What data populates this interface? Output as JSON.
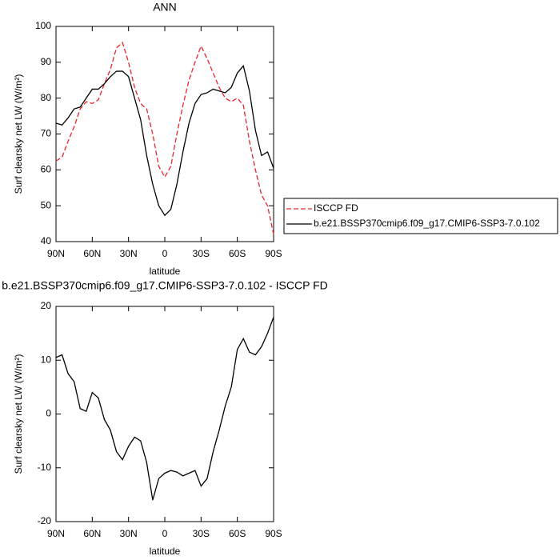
{
  "chart_data": [
    {
      "type": "line",
      "title": "ANN",
      "xlabel": "latitude",
      "ylabel": "Surf clearsky net LW (W/m²)",
      "x": [
        90,
        85,
        80,
        75,
        70,
        65,
        60,
        55,
        50,
        45,
        40,
        35,
        30,
        25,
        20,
        15,
        10,
        5,
        0,
        -5,
        -10,
        -15,
        -20,
        -25,
        -30,
        -35,
        -40,
        -45,
        -50,
        -55,
        -60,
        -65,
        -70,
        -75,
        -80,
        -85,
        -90
      ],
      "xlim": [
        90,
        -90
      ],
      "xticks": [
        {
          "value": 90,
          "label": "90N"
        },
        {
          "value": 60,
          "label": "60N"
        },
        {
          "value": 30,
          "label": "30N"
        },
        0,
        {
          "value": -30,
          "label": "30S"
        },
        {
          "value": -60,
          "label": "60S"
        },
        {
          "value": -90,
          "label": "90S"
        }
      ],
      "ylim": [
        40,
        100
      ],
      "yticks": [
        40,
        50,
        60,
        70,
        80,
        90,
        100
      ],
      "legend": "right",
      "series": [
        {
          "name": "ISCCP FD",
          "color": "#e8262b",
          "dashed": true,
          "values": [
            62.5,
            63.5,
            68,
            72,
            77,
            79,
            78.5,
            79.5,
            84,
            88,
            94,
            95.5,
            90,
            83,
            78.5,
            77,
            70,
            61,
            58,
            61,
            70,
            78,
            85,
            90,
            94.5,
            91,
            87,
            83,
            80,
            79,
            80,
            78,
            68,
            60,
            53,
            50,
            42
          ]
        },
        {
          "name": "b.e21.BSSP370cmip6.f09_g17.CMIP6-SSP3-7.0.102",
          "color": "#000000",
          "dashed": false,
          "values": [
            73,
            72.5,
            74.5,
            77,
            77.5,
            80,
            82.5,
            82.5,
            84,
            86,
            87.5,
            87.5,
            86,
            80,
            74,
            64,
            56,
            50,
            47.3,
            49,
            56,
            65,
            73,
            78.5,
            81,
            81.5,
            82.5,
            82,
            81.5,
            83,
            87,
            89,
            82,
            71,
            64,
            65,
            60.5
          ]
        }
      ]
    },
    {
      "type": "line",
      "title": "b.e21.BSSP370cmip6.f09_g17.CMIP6-SSP3-7.0.102 - ISCCP FD",
      "xlabel": "latitude",
      "ylabel": "Surf clearsky net LW (W/m²)",
      "x": [
        90,
        85,
        80,
        75,
        70,
        65,
        60,
        55,
        50,
        45,
        40,
        35,
        30,
        25,
        20,
        15,
        10,
        5,
        0,
        -5,
        -10,
        -15,
        -20,
        -25,
        -30,
        -35,
        -40,
        -45,
        -50,
        -55,
        -60,
        -65,
        -70,
        -75,
        -80,
        -85,
        -90
      ],
      "xlim": [
        90,
        -90
      ],
      "xticks": [
        {
          "value": 90,
          "label": "90N"
        },
        {
          "value": 60,
          "label": "60N"
        },
        {
          "value": 30,
          "label": "30N"
        },
        0,
        {
          "value": -30,
          "label": "30S"
        },
        {
          "value": -60,
          "label": "60S"
        },
        {
          "value": -90,
          "label": "90S"
        }
      ],
      "ylim": [
        -20,
        20
      ],
      "yticks": [
        -20,
        -10,
        0,
        10,
        20
      ],
      "series": [
        {
          "color": "#000000",
          "dashed": false,
          "values": [
            10.5,
            11,
            7.5,
            6,
            1,
            0.5,
            4,
            3,
            -1,
            -3,
            -7,
            -8.5,
            -6,
            -4.3,
            -5,
            -9,
            -16,
            -12,
            -11,
            -10.5,
            -10.8,
            -11.5,
            -11,
            -10.5,
            -13.4,
            -12,
            -7,
            -3,
            1.5,
            5,
            12,
            14,
            11.5,
            11,
            12.5,
            15,
            18
          ]
        }
      ]
    }
  ]
}
